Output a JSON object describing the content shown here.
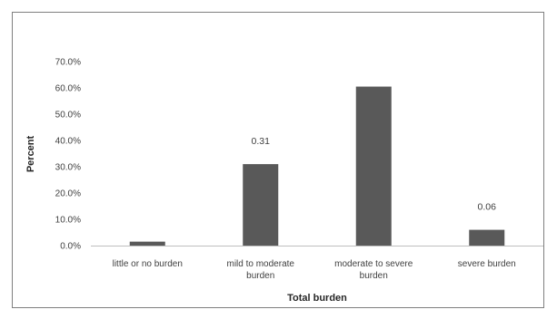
{
  "chart_data": {
    "type": "bar",
    "title": "",
    "xlabel": "Total burden",
    "ylabel": "Percent",
    "categories": [
      [
        "little or no burden"
      ],
      [
        "mild to moderate",
        "burden"
      ],
      [
        "moderate to severe",
        "burden"
      ],
      [
        "severe burden"
      ]
    ],
    "values": [
      0.015,
      0.31,
      0.605,
      0.06
    ],
    "data_labels": [
      "",
      "0.31",
      "",
      "0.06"
    ],
    "yticks": [
      "0.0%",
      "10.0%",
      "20.0%",
      "30.0%",
      "40.0%",
      "50.0%",
      "60.0%",
      "70.0%"
    ],
    "ylim": [
      0,
      0.7
    ],
    "grid": false,
    "legend": "none",
    "bar_color": "#595959",
    "axis_color": "#bfbfbf"
  }
}
